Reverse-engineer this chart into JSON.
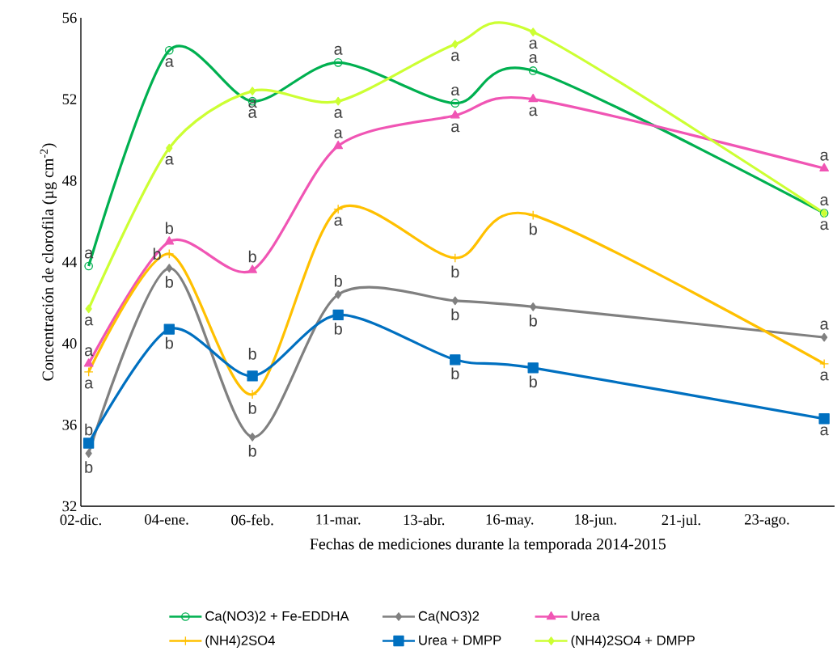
{
  "chart_data": {
    "type": "line",
    "xlabel": "Fechas de mediciones durante la temporada 2014-2015",
    "ylabel": "Concentración de clorofila (µg cm$^{-2}$)",
    "x": [
      "2014-12-05",
      "2015-01-05",
      "2015-02-06",
      "2015-03-11",
      "2015-04-25",
      "2015-05-25",
      "2015-09-14"
    ],
    "xlim": [
      "2014-12-02",
      "2015-09-18"
    ],
    "xticks": [
      {
        "value": "2014-12-02",
        "label": "02-dic."
      },
      {
        "value": "2015-01-04",
        "label": "04-ene."
      },
      {
        "value": "2015-02-06",
        "label": "06-feb."
      },
      {
        "value": "2015-03-11",
        "label": "11-mar."
      },
      {
        "value": "2015-04-13",
        "label": "13-abr."
      },
      {
        "value": "2015-05-16",
        "label": "16-may."
      },
      {
        "value": "2015-06-18",
        "label": "18-jun."
      },
      {
        "value": "2015-07-21",
        "label": "21-jul."
      },
      {
        "value": "2015-08-23",
        "label": "23-ago."
      }
    ],
    "ylim": [
      32,
      56
    ],
    "yticks": [
      32,
      36,
      40,
      44,
      48,
      52,
      56
    ],
    "grid": false,
    "legend": "bottom",
    "series": [
      {
        "name": "Ca(NO3)2 + Fe-EDDHA",
        "color": "#00b050",
        "marker": "circle",
        "values": [
          43.8,
          54.4,
          51.9,
          53.8,
          51.8,
          53.4,
          46.4
        ],
        "value_labels": [
          "a",
          "a",
          "a",
          "a",
          "a",
          "a",
          "a"
        ]
      },
      {
        "name": "Ca(NO3)2",
        "color": "#808080",
        "marker": "diamond",
        "values": [
          34.6,
          43.7,
          35.4,
          42.4,
          42.1,
          41.8,
          40.3
        ],
        "value_labels": [
          "b",
          "b",
          "b",
          "b",
          "b",
          "b",
          "a"
        ]
      },
      {
        "name": "Urea",
        "color": "#f055b4",
        "marker": "triangle",
        "values": [
          39.0,
          45.0,
          43.6,
          49.7,
          51.2,
          52.0,
          48.6
        ],
        "value_labels": [
          "a",
          "b",
          "b",
          "a",
          "a",
          "a",
          "a"
        ]
      },
      {
        "name": "(NH4)2SO4",
        "color": "#ffc000",
        "marker": "cross",
        "values": [
          38.6,
          44.4,
          37.5,
          46.6,
          44.2,
          46.3,
          39.0
        ],
        "value_labels": [
          "a",
          "b",
          "b",
          "a",
          "b",
          "b",
          "a"
        ]
      },
      {
        "name": "Urea + DMPP",
        "color": "#0070c0",
        "marker": "square",
        "values": [
          35.1,
          40.7,
          38.4,
          41.4,
          39.2,
          38.8,
          36.3
        ],
        "value_labels": [
          "b",
          "b",
          "b",
          "b",
          "b",
          "b",
          "a"
        ]
      },
      {
        "name": "(NH4)2SO4 + DMPP",
        "color": "#ccff33",
        "marker": "diamond",
        "values": [
          41.7,
          49.6,
          52.4,
          51.9,
          54.7,
          55.3,
          46.4
        ],
        "value_labels": [
          "a",
          "a",
          "a",
          "a",
          "a",
          "a",
          "a"
        ]
      }
    ]
  }
}
